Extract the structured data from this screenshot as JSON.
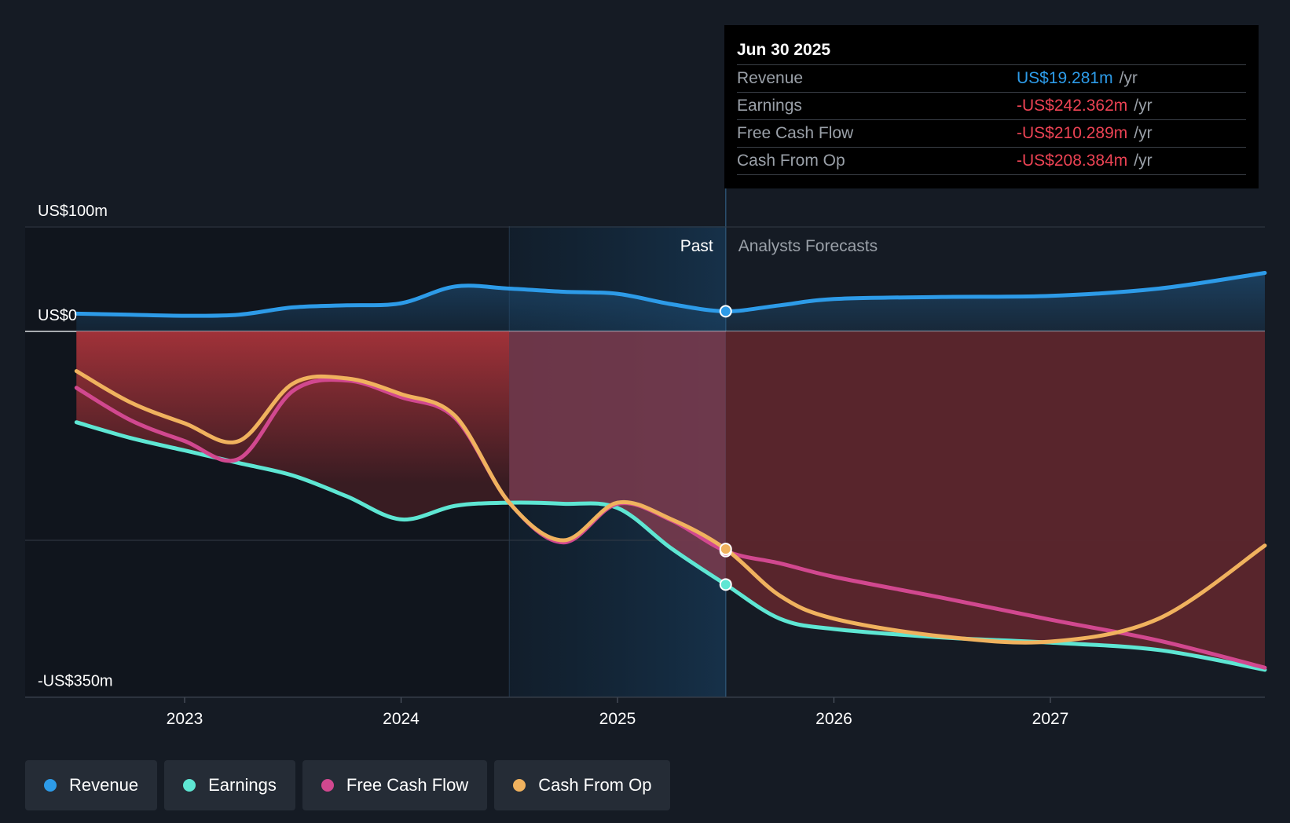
{
  "tooltip": {
    "date": "Jun 30 2025",
    "rows": [
      {
        "label": "Revenue",
        "value": "US$19.281m",
        "unit": "/yr",
        "color": "#2d9be8"
      },
      {
        "label": "Earnings",
        "value": "-US$242.362m",
        "unit": "/yr",
        "color": "#ec4354"
      },
      {
        "label": "Free Cash Flow",
        "value": "-US$210.289m",
        "unit": "/yr",
        "color": "#ec4354"
      },
      {
        "label": "Cash From Op",
        "value": "-US$208.384m",
        "unit": "/yr",
        "color": "#ec4354"
      }
    ]
  },
  "legend": [
    {
      "label": "Revenue",
      "color": "#2d9be8"
    },
    {
      "label": "Earnings",
      "color": "#5ee6d3"
    },
    {
      "label": "Free Cash Flow",
      "color": "#d1488f"
    },
    {
      "label": "Cash From Op",
      "color": "#f0b25e"
    }
  ],
  "chart_data": {
    "type": "line",
    "y_tick_labels": [
      "US$100m",
      "US$0",
      "-US$350m"
    ],
    "y_ticks": [
      100,
      0,
      -350
    ],
    "ylim": [
      -350,
      100
    ],
    "x_tick_labels": [
      "2023",
      "2024",
      "2025",
      "2026",
      "2027"
    ],
    "x_ticks": [
      2023,
      2024,
      2025,
      2026,
      2027
    ],
    "xlim": [
      2022.26,
      2028.0
    ],
    "past_label": "Past",
    "forecast_label": "Analysts Forecasts",
    "present_x": 2025.5,
    "highlight_start_x": 2024.5,
    "grid_y": [
      100,
      0,
      -200,
      -350
    ],
    "series": [
      {
        "name": "Revenue",
        "color": "#2d9be8",
        "x": [
          2022.5,
          2022.75,
          2023.0,
          2023.25,
          2023.5,
          2023.75,
          2024.0,
          2024.25,
          2024.5,
          2024.75,
          2025.0,
          2025.25,
          2025.5,
          2025.75,
          2026.0,
          2026.5,
          2027.0,
          2027.5,
          2028.0
        ],
        "y": [
          17,
          16,
          15,
          16,
          23,
          25,
          27,
          43,
          41,
          38,
          36,
          26,
          19.281,
          25,
          31,
          33,
          34,
          41,
          56
        ]
      },
      {
        "name": "Earnings",
        "color": "#5ee6d3",
        "x": [
          2022.5,
          2022.75,
          2023.0,
          2023.25,
          2023.5,
          2023.75,
          2024.0,
          2024.25,
          2024.5,
          2024.75,
          2025.0,
          2025.25,
          2025.5,
          2025.75,
          2026.0,
          2026.5,
          2027.0,
          2027.5,
          2028.0
        ],
        "y": [
          -87,
          -102,
          -114,
          -126,
          -138,
          -158,
          -180,
          -167,
          -164,
          -165,
          -169,
          -208,
          -242.362,
          -275,
          -285,
          -293,
          -298,
          -305,
          -324
        ]
      },
      {
        "name": "Free Cash Flow",
        "color": "#d1488f",
        "x": [
          2022.5,
          2022.75,
          2023.0,
          2023.25,
          2023.5,
          2023.75,
          2024.0,
          2024.25,
          2024.5,
          2024.75,
          2025.0,
          2025.25,
          2025.5,
          2025.75,
          2026.0,
          2026.5,
          2027.0,
          2027.5,
          2028.0
        ],
        "y": [
          -54,
          -85,
          -105,
          -122,
          -57,
          -47,
          -63,
          -83,
          -164,
          -202,
          -165,
          -181,
          -210.289,
          -222,
          -235,
          -255,
          -276,
          -296,
          -322
        ]
      },
      {
        "name": "Cash From Op",
        "color": "#f0b25e",
        "x": [
          2022.5,
          2022.75,
          2023.0,
          2023.25,
          2023.5,
          2023.75,
          2024.0,
          2024.25,
          2024.5,
          2024.75,
          2025.0,
          2025.25,
          2025.5,
          2025.75,
          2026.0,
          2026.5,
          2027.0,
          2027.5,
          2028.0
        ],
        "y": [
          -38,
          -68,
          -88,
          -105,
          -50,
          -45,
          -60,
          -81,
          -164,
          -200,
          -164,
          -180,
          -208.384,
          -253,
          -275,
          -292,
          -297,
          -275,
          -205
        ]
      }
    ]
  }
}
